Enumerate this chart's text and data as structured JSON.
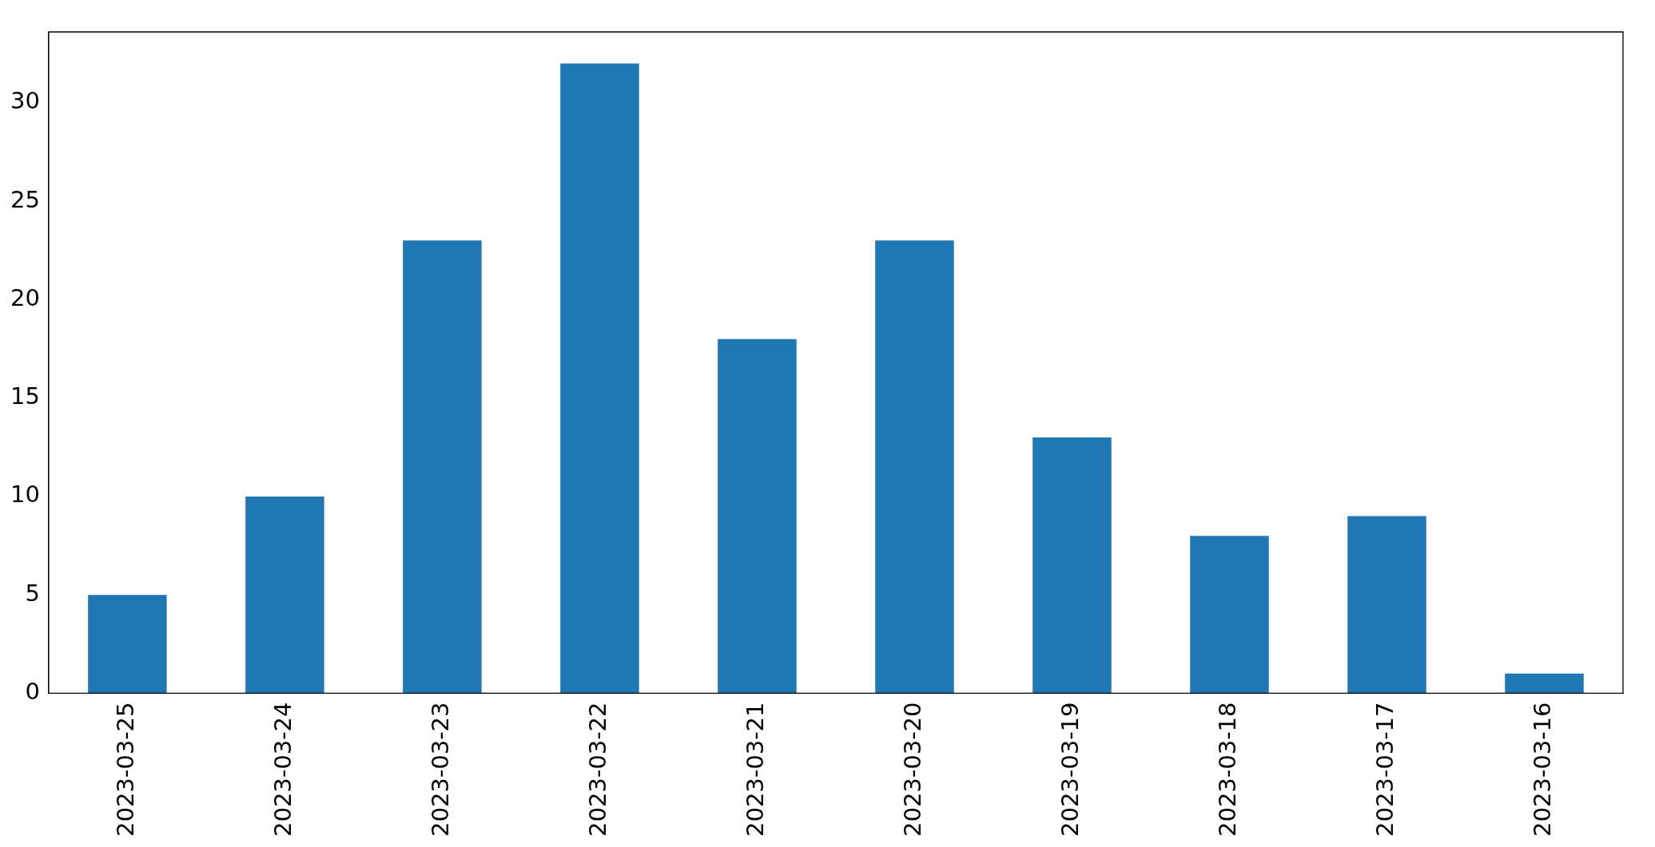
{
  "chart_data": {
    "type": "bar",
    "categories": [
      "2023-03-25",
      "2023-03-24",
      "2023-03-23",
      "2023-03-22",
      "2023-03-21",
      "2023-03-20",
      "2023-03-19",
      "2023-03-18",
      "2023-03-17",
      "2023-03-16"
    ],
    "values": [
      5,
      10,
      23,
      32,
      18,
      23,
      13,
      8,
      9,
      1
    ],
    "color": "#1f77b4",
    "ylim": [
      0,
      33.6
    ],
    "yticks": [
      0,
      5,
      10,
      15,
      20,
      25,
      30
    ]
  }
}
